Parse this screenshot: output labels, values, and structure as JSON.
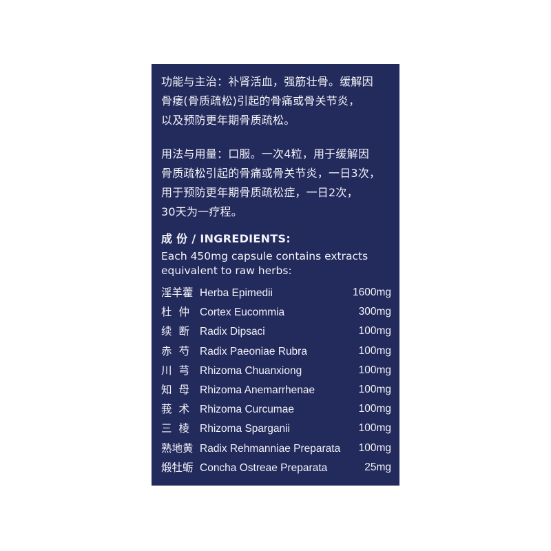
{
  "functions": {
    "lines": [
      "功能与主治：补肾活血，强筋壮骨。缓解因",
      "骨痿(骨质疏松)引起的骨痛或骨关节炎，",
      "以及预防更年期骨质疏松。"
    ]
  },
  "usage": {
    "lines": [
      "用法与用量：口服。一次4粒，用于缓解因",
      "骨质疏松引起的骨痛或骨关节炎，一日3次，",
      "用于预防更年期骨质疏松症，一日2次，",
      "30天为一疗程。"
    ]
  },
  "ingredients": {
    "heading": "成 份 / INGREDIENTS:",
    "intro_lines": [
      "Each 450mg capsule contains extracts",
      "equivalent to raw herbs:"
    ],
    "items": [
      {
        "zh": "淫羊藿",
        "latin": "Herba Epimedii",
        "dose": "1600mg"
      },
      {
        "zh": "杜仲",
        "latin": "Cortex Eucommia",
        "dose": "300mg"
      },
      {
        "zh": "续断",
        "latin": "Radix Dipsaci",
        "dose": "100mg"
      },
      {
        "zh": "赤芍",
        "latin": "Radix Paeoniae Rubra",
        "dose": "100mg"
      },
      {
        "zh": "川芎",
        "latin": "Rhizoma Chuanxiong",
        "dose": "100mg"
      },
      {
        "zh": "知母",
        "latin": "Rhizoma Anemarrhenae",
        "dose": "100mg"
      },
      {
        "zh": "莪术",
        "latin": "Rhizoma Curcumae",
        "dose": "100mg"
      },
      {
        "zh": "三棱",
        "latin": "Rhizoma Sparganii",
        "dose": "100mg"
      },
      {
        "zh": "熟地黄",
        "latin": "Radix Rehmanniae Preparata",
        "dose": "100mg"
      },
      {
        "zh": "煅牡蛎",
        "latin": "Concha Ostreae Preparata",
        "dose": "25mg"
      }
    ]
  },
  "colors": {
    "panel_background": "#232a5c",
    "text": "#f2f3f8",
    "page_background": "#ffffff"
  }
}
